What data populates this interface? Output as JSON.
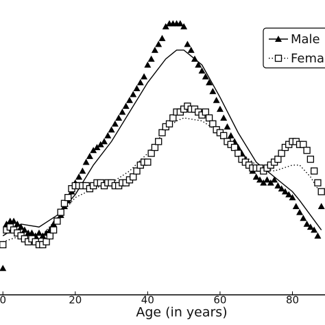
{
  "chart_data": {
    "type": "scatter",
    "xlabel": "Age (in years)",
    "xlim": [
      -0.8,
      89
    ],
    "xticks": [
      0,
      20,
      40,
      60,
      80
    ],
    "ylim": [
      0,
      100
    ],
    "legend": "upper right",
    "x": [
      0,
      1,
      2,
      3,
      4,
      5,
      6,
      7,
      8,
      9,
      10,
      11,
      12,
      13,
      14,
      15,
      16,
      17,
      18,
      19,
      20,
      21,
      22,
      23,
      24,
      25,
      26,
      27,
      28,
      29,
      30,
      31,
      32,
      33,
      34,
      35,
      36,
      37,
      38,
      39,
      40,
      41,
      42,
      43,
      44,
      45,
      46,
      47,
      48,
      49,
      50,
      51,
      52,
      53,
      54,
      55,
      56,
      57,
      58,
      59,
      60,
      61,
      62,
      63,
      64,
      65,
      66,
      67,
      68,
      69,
      70,
      71,
      72,
      73,
      74,
      75,
      76,
      77,
      78,
      79,
      80,
      81,
      82,
      83,
      84,
      85,
      86,
      87,
      88
    ],
    "fit_x": [
      0,
      5,
      10,
      15,
      20,
      25,
      30,
      35,
      40,
      45,
      48,
      50,
      55,
      60,
      65,
      70,
      75,
      80,
      82,
      85,
      88
    ],
    "series": [
      {
        "name": "Male",
        "marker": "triangle",
        "color": "#000000",
        "line": "solid",
        "values": [
          9,
          24,
          25,
          25,
          24,
          23,
          22,
          21,
          21,
          20,
          21,
          20,
          21,
          22,
          24,
          25,
          27,
          30,
          32,
          35,
          38,
          40,
          42,
          45,
          47,
          49,
          50,
          51,
          52,
          54,
          56,
          58,
          60,
          62,
          64,
          66,
          68,
          70,
          72,
          74,
          78,
          80,
          83,
          85,
          87,
          91,
          92,
          92,
          92,
          92,
          91,
          85,
          83,
          80,
          78,
          76,
          74,
          72,
          69,
          66,
          63,
          60,
          57,
          54,
          52,
          50,
          48,
          46,
          44,
          42,
          40,
          39,
          38,
          39,
          38,
          39,
          37,
          36,
          35,
          34,
          33,
          30,
          28,
          26,
          24,
          23,
          22,
          20,
          30
        ],
        "fit": [
          20,
          24,
          23,
          27,
          34,
          44,
          52,
          62,
          72,
          80,
          83,
          83,
          78,
          67,
          55,
          45,
          40,
          35,
          32,
          27,
          22
        ]
      },
      {
        "name": "Female",
        "marker": "square",
        "color": "#000000",
        "line": "dotted",
        "values": [
          17,
          22,
          23,
          22,
          21,
          20,
          19,
          18,
          19,
          18,
          17,
          17,
          18,
          20,
          22,
          25,
          28,
          31,
          33,
          36,
          37,
          37,
          37,
          37,
          36,
          37,
          38,
          38,
          37,
          38,
          38,
          37,
          37,
          38,
          38,
          39,
          40,
          42,
          44,
          45,
          45,
          48,
          50,
          52,
          55,
          57,
          58,
          60,
          62,
          62,
          63,
          64,
          63,
          63,
          62,
          61,
          62,
          60,
          58,
          56,
          55,
          54,
          52,
          51,
          50,
          48,
          46,
          45,
          44,
          43,
          43,
          43,
          42,
          43,
          44,
          45,
          46,
          48,
          50,
          51,
          52,
          52,
          51,
          51,
          49,
          46,
          42,
          38,
          35
        ],
        "fit": [
          18,
          20,
          19,
          26,
          33,
          36,
          38,
          42,
          48,
          56,
          59,
          60,
          59,
          55,
          49,
          44,
          42,
          44,
          44,
          40,
          34
        ]
      }
    ]
  }
}
